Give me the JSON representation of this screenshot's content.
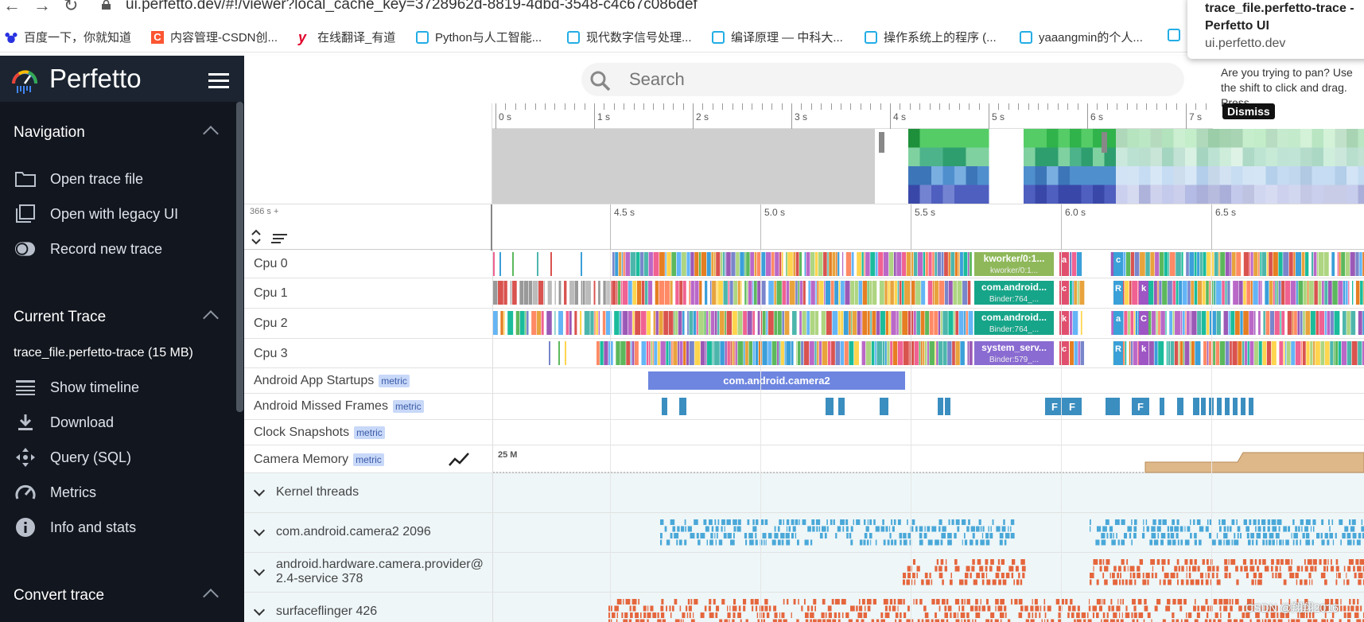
{
  "browser": {
    "url": "ui.perfetto.dev/#!/viewer?local_cache_key=3728962d-8819-4dbd-3548-c4c67c086def",
    "back_icon": "arrow-left-icon",
    "forward_icon": "arrow-right-icon",
    "reload_icon": "reload-icon",
    "bookmarks": [
      {
        "label": "百度一下，你就知道",
        "icon": "baidu-paw-icon",
        "color": "#2932e1"
      },
      {
        "label": "内容管理-CSDN创...",
        "icon": "csdn-c-icon",
        "color": "#fc5531"
      },
      {
        "label": "在线翻译_有道",
        "icon": "youdao-y-icon",
        "color": "#e0002a"
      },
      {
        "label": "Python与人工智能...",
        "icon": "bilibili-tv-icon",
        "color": "#23ade5"
      },
      {
        "label": "现代数字信号处理...",
        "icon": "bilibili-tv-icon",
        "color": "#23ade5"
      },
      {
        "label": "编译原理 — 中科大...",
        "icon": "bilibili-tv-icon",
        "color": "#23ade5"
      },
      {
        "label": "操作系统上的程序 (...",
        "icon": "bilibili-tv-icon",
        "color": "#23ade5"
      },
      {
        "label": "yaaangmin的个人...",
        "icon": "bilibili-tv-icon",
        "color": "#23ade5"
      }
    ],
    "tab_tooltip": {
      "title": "trace_file.perfetto-trace - Perfetto UI",
      "domain": "ui.perfetto.dev"
    }
  },
  "sidebar": {
    "brand": "Perfetto",
    "sections": [
      {
        "title": "Navigation",
        "items": [
          {
            "label": "Open trace file",
            "icon": "folder-icon"
          },
          {
            "label": "Open with legacy UI",
            "icon": "copy-window-icon"
          },
          {
            "label": "Record new trace",
            "icon": "record-toggle-icon"
          }
        ]
      },
      {
        "title": "Current Trace",
        "trace_name": "trace_file.perfetto-trace (15 MB)",
        "items": [
          {
            "label": "Show timeline",
            "icon": "timeline-icon"
          },
          {
            "label": "Download",
            "icon": "download-icon"
          },
          {
            "label": "Query (SQL)",
            "icon": "query-move-icon"
          },
          {
            "label": "Metrics",
            "icon": "speedometer-icon"
          },
          {
            "label": "Info and stats",
            "icon": "info-icon"
          }
        ]
      },
      {
        "title": "Convert trace",
        "items": []
      }
    ]
  },
  "search": {
    "placeholder": "Search"
  },
  "pan_hint": {
    "text": "Are you trying to pan? Use the shift to click and drag. Press",
    "dismiss": "Dismiss"
  },
  "overview": {
    "ticks": [
      "0 s",
      "1 s",
      "2 s",
      "3 s",
      "4 s",
      "5 s",
      "6 s",
      "7 s"
    ]
  },
  "timeline": {
    "offset": "366 s +",
    "ticks": [
      "4.5 s",
      "5.0 s",
      "5.5 s",
      "6.0 s",
      "6.5 s"
    ]
  },
  "tracks": {
    "cpu": [
      {
        "label": "Cpu 0",
        "slice_name": "kworker/0:1...",
        "slice_sub": "kworker/0:1...",
        "slice_color": "#8fb85a",
        "small": [
          "a",
          "c"
        ]
      },
      {
        "label": "Cpu 1",
        "slice_name": "com.android...",
        "slice_sub": "Binder:764_...",
        "slice_color": "#17a589",
        "small": [
          "c",
          "R",
          "k"
        ]
      },
      {
        "label": "Cpu 2",
        "slice_name": "com.android...",
        "slice_sub": "Binder:764_...",
        "slice_color": "#17a589",
        "small": [
          "k",
          "a",
          "C"
        ]
      },
      {
        "label": "Cpu 3",
        "slice_name": "system_serv...",
        "slice_sub": "Binder:579_...",
        "slice_color": "#8a6bd1",
        "small": [
          "c",
          "R",
          "k"
        ]
      }
    ],
    "app_startups": {
      "label": "Android App Startups",
      "badge": "metric",
      "slice": "com.android.camera2"
    },
    "missed_frames": {
      "label": "Android Missed Frames",
      "badge": "metric",
      "flags": [
        "F",
        "F",
        "F"
      ]
    },
    "clock_snapshots": {
      "label": "Clock Snapshots",
      "badge": "metric"
    },
    "camera_memory": {
      "label": "Camera Memory",
      "badge": "metric",
      "scale": "25 M",
      "icon": "line-chart-icon"
    },
    "groups": [
      {
        "label": "Kernel threads"
      },
      {
        "label": "com.android.camera2 2096"
      },
      {
        "label": "android.hardware.camera.provider@",
        "label2": "2.4-service 378"
      },
      {
        "label": "surfaceflinger 426"
      }
    ]
  },
  "watermark": "CSDN @翔翔2016"
}
